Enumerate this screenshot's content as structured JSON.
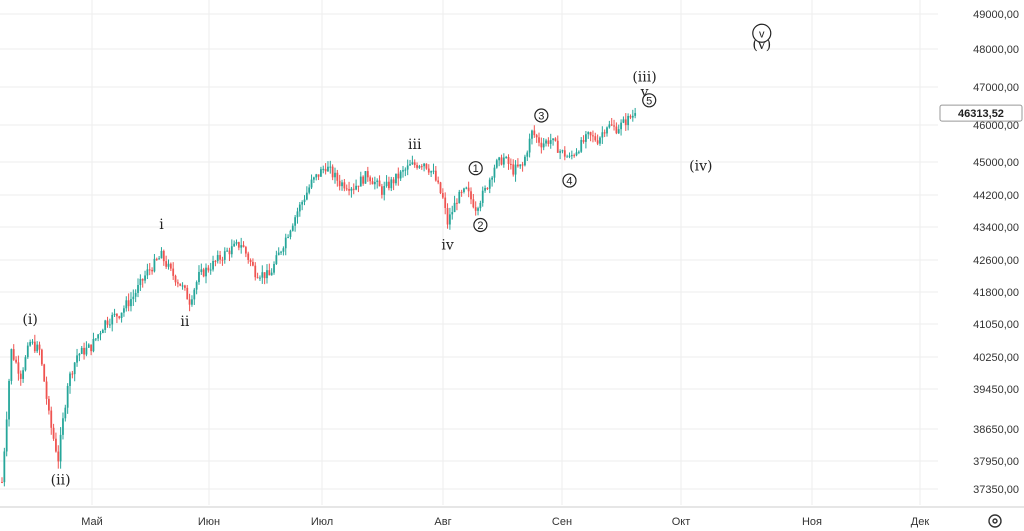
{
  "chart_data": {
    "type": "candlestick",
    "y_axis": {
      "ticks": [
        49000,
        48000,
        47000,
        46000,
        45000,
        44200,
        43400,
        42600,
        41800,
        41050,
        40250,
        39450,
        38650,
        37950,
        37350
      ],
      "tick_labels": [
        "49000,00",
        "48000,00",
        "47000,00",
        "46000,00",
        "45000,00",
        "44200,00",
        "43400,00",
        "42600,00",
        "41800,00",
        "41050,00",
        "40250,00",
        "39450,00",
        "38650,00",
        "37950,00",
        "37350,00"
      ],
      "position": "right"
    },
    "x_axis": {
      "months": [
        "Май",
        "Июн",
        "Июл",
        "Авг",
        "Сен",
        "Окт",
        "Ноя",
        "Дек"
      ]
    },
    "last_price": {
      "value": 46313.52,
      "label": "46313,52"
    },
    "grid": true,
    "series_up_color": "#26a69a",
    "series_down_color": "#ef5350",
    "trend": [
      [
        0,
        37500
      ],
      [
        4,
        40400
      ],
      [
        8,
        39800
      ],
      [
        12,
        40600
      ],
      [
        16,
        40400
      ],
      [
        20,
        38900
      ],
      [
        24,
        38000
      ],
      [
        28,
        39600
      ],
      [
        32,
        40300
      ],
      [
        38,
        40500
      ],
      [
        44,
        41100
      ],
      [
        50,
        41300
      ],
      [
        56,
        41700
      ],
      [
        62,
        42300
      ],
      [
        68,
        42700
      ],
      [
        72,
        42300
      ],
      [
        76,
        42000
      ],
      [
        80,
        41600
      ],
      [
        84,
        42200
      ],
      [
        90,
        42500
      ],
      [
        96,
        42800
      ],
      [
        102,
        43000
      ],
      [
        108,
        42300
      ],
      [
        114,
        42200
      ],
      [
        120,
        43000
      ],
      [
        126,
        43800
      ],
      [
        132,
        44500
      ],
      [
        138,
        44900
      ],
      [
        144,
        44500
      ],
      [
        150,
        44400
      ],
      [
        156,
        44700
      ],
      [
        162,
        44300
      ],
      [
        168,
        44600
      ],
      [
        174,
        44900
      ],
      [
        180,
        45000
      ],
      [
        184,
        44700
      ],
      [
        188,
        44100
      ],
      [
        190,
        43500
      ],
      [
        194,
        44100
      ],
      [
        198,
        44300
      ],
      [
        202,
        43900
      ],
      [
        206,
        44300
      ],
      [
        210,
        44900
      ],
      [
        214,
        45100
      ],
      [
        218,
        44800
      ],
      [
        222,
        44900
      ],
      [
        226,
        45800
      ],
      [
        230,
        45500
      ],
      [
        234,
        45600
      ],
      [
        238,
        45300
      ],
      [
        242,
        45100
      ],
      [
        246,
        45400
      ],
      [
        250,
        45700
      ],
      [
        254,
        45600
      ],
      [
        258,
        46000
      ],
      [
        262,
        45900
      ],
      [
        266,
        46100
      ],
      [
        270,
        46313.52
      ]
    ],
    "wave_labels": [
      {
        "text": "(i)",
        "x": 12,
        "y": 41050
      },
      {
        "text": "(ii)",
        "x": 25,
        "y": 37450
      },
      {
        "text": "i",
        "x": 68,
        "y": 43350
      },
      {
        "text": "ii",
        "x": 78,
        "y": 41000
      },
      {
        "text": "iii",
        "x": 176,
        "y": 45350
      },
      {
        "text": "iv",
        "x": 190,
        "y": 42850
      },
      {
        "text": "(iii)",
        "x": 274,
        "y": 47150
      },
      {
        "text": "v",
        "x": 274,
        "y": 46750
      },
      {
        "text": "(iv)",
        "x": 298,
        "y": 44800
      },
      {
        "text": "(v)",
        "x": 324,
        "y": 48000
      }
    ],
    "circled_labels": [
      {
        "text": "1",
        "x": 202,
        "y": 44850
      },
      {
        "text": "2",
        "x": 204,
        "y": 43450
      },
      {
        "text": "3",
        "x": 230,
        "y": 46250
      },
      {
        "text": "4",
        "x": 242,
        "y": 44550
      },
      {
        "text": "5",
        "x": 276,
        "y": 46650
      },
      {
        "text": "v",
        "x": 324,
        "y": 48450
      }
    ]
  }
}
